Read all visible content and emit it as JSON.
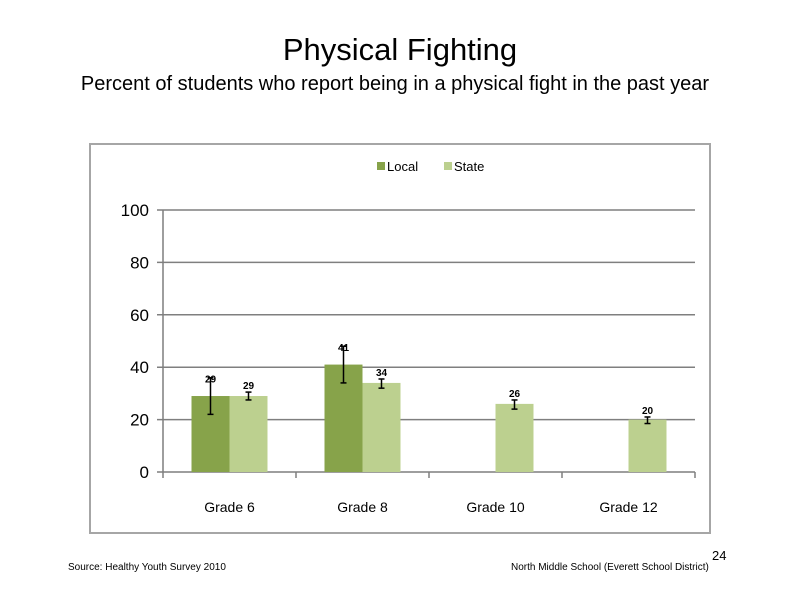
{
  "slide": {
    "title": "Physical Fighting",
    "subtitle": "Percent of students who report being in a physical fight in the past year",
    "source": "Source: Healthy Youth Survey 2010",
    "school": "North Middle School (Everett School District)",
    "page_number": "24"
  },
  "colors": {
    "local": "#87a34a",
    "state": "#bcd08f",
    "grid": "#7f7f7f",
    "frame": "#a6a6a6"
  },
  "chart_data": {
    "type": "bar",
    "categories": [
      "Grade 6",
      "Grade 8",
      "Grade 10",
      "Grade 12"
    ],
    "series": [
      {
        "name": "Local",
        "values": [
          29,
          41,
          null,
          null
        ],
        "error_low": [
          22,
          34,
          null,
          null
        ],
        "error_high": [
          36,
          48,
          null,
          null
        ],
        "labels": [
          "29",
          "41",
          "",
          ""
        ]
      },
      {
        "name": "State",
        "values": [
          29,
          34,
          26,
          20
        ],
        "error_low": [
          27.5,
          32,
          24,
          18.5
        ],
        "error_high": [
          30.5,
          35.5,
          27.5,
          21
        ],
        "labels": [
          "29",
          "34",
          "26",
          "20"
        ]
      }
    ],
    "title": "",
    "xlabel": "",
    "ylabel": "",
    "ylim": [
      0,
      100
    ],
    "yticks": [
      "0",
      "20",
      "40",
      "60",
      "80",
      "100"
    ],
    "grid": true,
    "legend_position": "top-center"
  }
}
